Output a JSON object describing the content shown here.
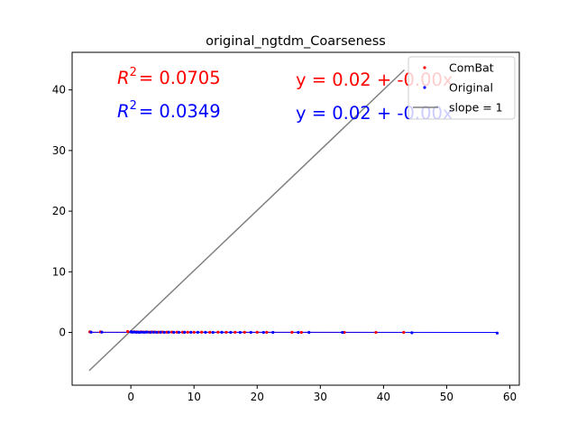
{
  "chart_data": {
    "type": "scatter",
    "title": "original_ngtdm_Coarseness",
    "xlabel": "",
    "ylabel": "",
    "xlim": [
      -9.3,
      61.5
    ],
    "ylim": [
      -8.7,
      46.2
    ],
    "xticks": [
      0,
      10,
      20,
      30,
      40,
      50,
      60
    ],
    "yticks": [
      0,
      10,
      20,
      30,
      40
    ],
    "grid": false,
    "legend_position": "top-right",
    "legend": [
      "ComBat",
      "Original",
      "slope = 1"
    ],
    "annotations": {
      "combat_r2_symbol": "R",
      "combat_r2_exp": "2",
      "combat_r2_value": "= 0.0705",
      "combat_equation": "y = 0.02 + -0.00x",
      "original_r2_symbol": "R",
      "original_r2_exp": "2",
      "original_r2_value": "= 0.0349",
      "original_equation": "y = 0.02 + -0.00x"
    },
    "colors": {
      "combat": "#ff0000",
      "original": "#0000ff",
      "slope": "#808080"
    },
    "series": [
      {
        "name": "ComBat",
        "points": [
          [
            -6.5,
            0.1
          ],
          [
            -4.8,
            0.1
          ],
          [
            -0.5,
            0.15
          ],
          [
            0.1,
            0.1
          ],
          [
            0.3,
            0.05
          ],
          [
            0.6,
            0.1
          ],
          [
            0.9,
            0.08
          ],
          [
            1.2,
            0.05
          ],
          [
            1.6,
            0.1
          ],
          [
            2.0,
            0.06
          ],
          [
            2.4,
            0.09
          ],
          [
            2.9,
            0.05
          ],
          [
            3.3,
            0.08
          ],
          [
            3.8,
            0.06
          ],
          [
            4.4,
            0.05
          ],
          [
            5.0,
            0.07
          ],
          [
            5.7,
            0.04
          ],
          [
            6.5,
            0.06
          ],
          [
            7.3,
            0.05
          ],
          [
            8.2,
            0.04
          ],
          [
            9.0,
            0.05
          ],
          [
            10.0,
            0.03
          ],
          [
            11.2,
            0.04
          ],
          [
            12.5,
            0.03
          ],
          [
            13.8,
            0.04
          ],
          [
            15.1,
            0.02
          ],
          [
            16.5,
            0.03
          ],
          [
            18.0,
            0.02
          ],
          [
            20.0,
            0.03
          ],
          [
            21.5,
            0.02
          ],
          [
            25.5,
            0.02
          ],
          [
            27.0,
            0.01
          ],
          [
            33.8,
            0.01
          ],
          [
            38.8,
            0.0
          ],
          [
            43.2,
            0.0
          ]
        ],
        "fit": {
          "intercept": 0.02,
          "slope": -0.0003
        }
      },
      {
        "name": "Original",
        "points": [
          [
            -6.3,
            0.05
          ],
          [
            -4.6,
            0.05
          ],
          [
            0.0,
            0.1
          ],
          [
            0.2,
            0.05
          ],
          [
            0.5,
            0.08
          ],
          [
            0.8,
            0.03
          ],
          [
            1.1,
            0.06
          ],
          [
            1.4,
            0.02
          ],
          [
            1.8,
            0.05
          ],
          [
            2.2,
            0.03
          ],
          [
            2.6,
            0.06
          ],
          [
            3.1,
            0.02
          ],
          [
            3.6,
            0.05
          ],
          [
            4.1,
            0.03
          ],
          [
            4.7,
            0.04
          ],
          [
            5.3,
            0.02
          ],
          [
            6.0,
            0.04
          ],
          [
            6.8,
            0.02
          ],
          [
            7.6,
            0.03
          ],
          [
            8.5,
            0.02
          ],
          [
            9.5,
            0.03
          ],
          [
            10.6,
            0.02
          ],
          [
            11.8,
            0.02
          ],
          [
            13.0,
            0.01
          ],
          [
            14.4,
            0.02
          ],
          [
            15.8,
            0.01
          ],
          [
            17.3,
            0.01
          ],
          [
            19.0,
            0.01
          ],
          [
            21.0,
            0.01
          ],
          [
            22.5,
            0.0
          ],
          [
            26.5,
            0.0
          ],
          [
            28.2,
            0.0
          ],
          [
            33.5,
            0.0
          ],
          [
            44.5,
            -0.05
          ],
          [
            58.0,
            -0.1
          ]
        ],
        "fit": {
          "intercept": 0.02,
          "slope": -0.0002
        }
      }
    ],
    "slope_line": {
      "x": [
        -6.6,
        43.3
      ],
      "y": [
        -6.3,
        43.3
      ]
    }
  }
}
